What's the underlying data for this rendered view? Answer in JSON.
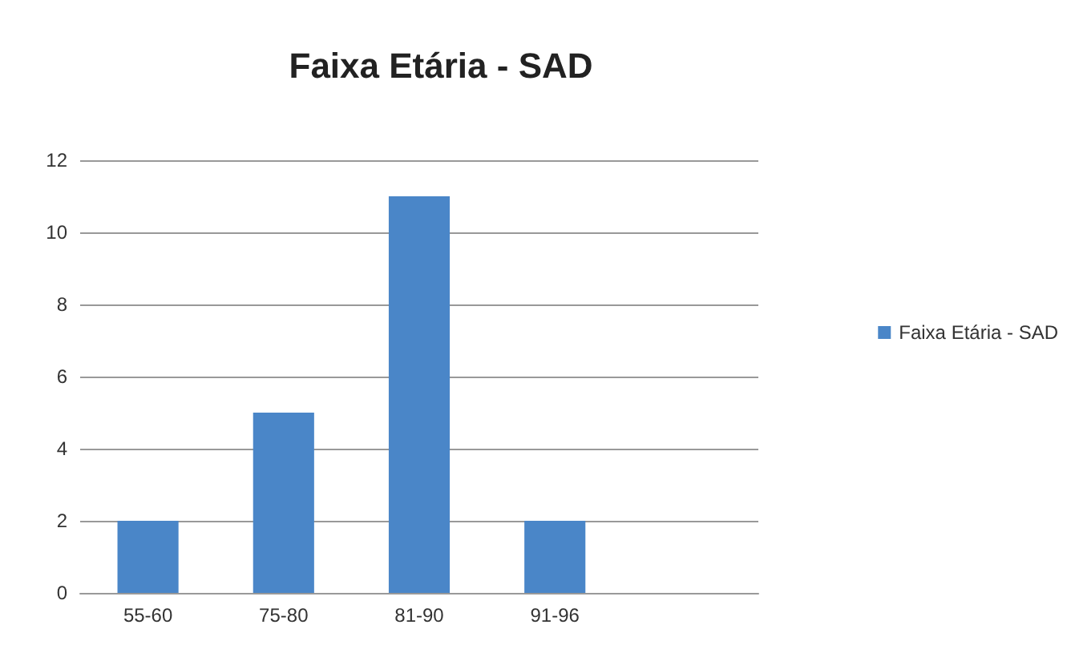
{
  "chart_data": {
    "type": "bar",
    "title": "Faixa Etária - SAD",
    "categories": [
      "55-60",
      "75-80",
      "81-90",
      "91-96",
      null
    ],
    "series": [
      {
        "name": "Faixa Etária - SAD",
        "color": "#4a86c8",
        "values": [
          2,
          5,
          11,
          2,
          null
        ]
      }
    ],
    "ylim": [
      0,
      12
    ],
    "yticks": [
      0,
      2,
      4,
      6,
      8,
      10,
      12
    ],
    "grid": "y",
    "legend": "right"
  }
}
